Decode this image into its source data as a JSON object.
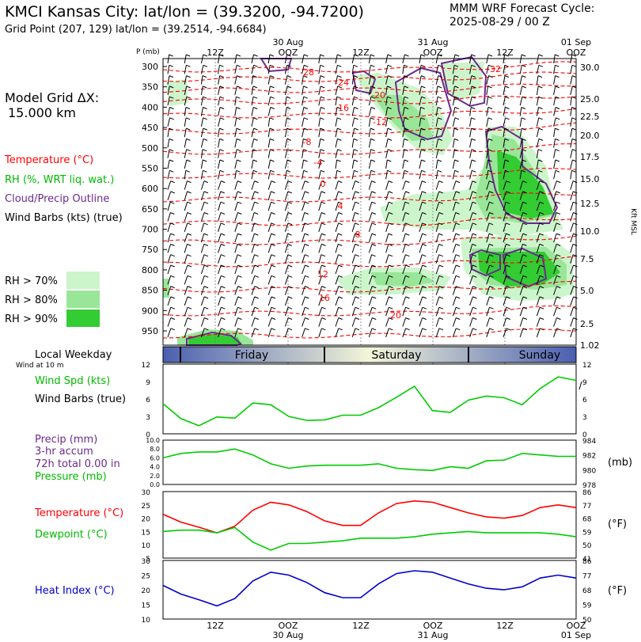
{
  "header": {
    "title": "KMCI Kansas City:  lat/lon = (39.3200, -94.7200)",
    "subtitle": "Grid Point (207, 129) lat/lon = (39.2514, -94.6684)",
    "cycle_line1": "MMM WRF Forecast Cycle:",
    "cycle_line2": "2025-08-29 / 00  Z"
  },
  "legend": {
    "grid1": "Model Grid ΔX:",
    "grid2": "15.000 km",
    "temperature": "Temperature (°C)",
    "rh": "RH (%, WRT liq. wat.)",
    "cloud": "Cloud/Precip Outline",
    "wind": "Wind Barbs (kts) (true)",
    "rh70": "RH > 70%",
    "rh80": "RH > 80%",
    "rh90": "RH > 90%",
    "local_weekday": "Local Weekday",
    "wind10m": "Wind at 10 m",
    "wind_spd": "Wind Spd (kts)",
    "wind_barbs": "Wind Barbs (true)",
    "precip1": "Precip (mm)",
    "precip2": "3-hr accum",
    "precip3": "72h total 0.00 in",
    "pressure": "Pressure (mb)",
    "temp2": "Temperature (°C)",
    "dewpoint": "Dewpoint (°C)",
    "heat_index": "Heat Index (°C)",
    "unit_mb": "(mb)",
    "unit_f1": "(°F)",
    "unit_f2": "(°F)",
    "p_label": "P (mb)",
    "kft_label": "Kft MSL"
  },
  "colors": {
    "temperature": "#ff0000",
    "rh": "#00bb00",
    "cloud": "#6a2a8e",
    "wind": "#000000",
    "heat_index": "#0000cc",
    "rh70": "#ccf5cc",
    "rh80": "#99e699",
    "rh90": "#33cc33"
  },
  "chart_data": {
    "type": "line",
    "time_axis": {
      "top_labels": [
        [
          "12Z",
          ""
        ],
        [
          "OOZ",
          "30 Aug"
        ],
        [
          "12Z",
          ""
        ],
        [
          "OOZ",
          "31 Aug"
        ],
        [
          "12Z",
          ""
        ],
        [
          "OOZ",
          "01 Sep"
        ]
      ],
      "bottom_labels": [
        [
          "12Z",
          ""
        ],
        [
          "OOZ",
          "30 Aug"
        ],
        [
          "12Z",
          ""
        ],
        [
          "OOZ",
          "31 Aug"
        ],
        [
          "12Z",
          ""
        ],
        [
          "OOZ",
          "01 Sep"
        ]
      ]
    },
    "pressure_levels": [
      "300",
      "350",
      "400",
      "450",
      "500",
      "550",
      "600",
      "650",
      "700",
      "750",
      "800",
      "850",
      "900",
      "950"
    ],
    "height_kft": [
      "30.0",
      "25.0",
      "22.5",
      "20.0",
      "17.5",
      "15.0",
      "12.5",
      "10.0",
      "7.5",
      "5.0",
      "2.5",
      "1.02"
    ],
    "temp_contour_labels": [
      "-28",
      "-24",
      "-20",
      "-16",
      "-12",
      "-8",
      "-4",
      "0",
      "4",
      "8",
      "12",
      "16",
      "20",
      "-32"
    ],
    "weekdays": [
      "Friday",
      "Saturday",
      "Sunday"
    ],
    "wind_speed": {
      "ylim": [
        0,
        12
      ],
      "ticks": [
        "0",
        "3",
        "6",
        "9",
        "12"
      ],
      "values": [
        5.2,
        2.6,
        1.4,
        2.9,
        2.7,
        5.3,
        5.0,
        3.0,
        2.3,
        2.4,
        3.2,
        3.2,
        4.5,
        6.3,
        8.2,
        4.0,
        3.7,
        5.8,
        6.5,
        6.2,
        5.0,
        7.8,
        9.8,
        9.2
      ]
    },
    "precip_pressure": {
      "precip_ticks": [
        "0.0",
        "2.0",
        "4.0",
        "6.0",
        "8.0",
        "10.0"
      ],
      "pressure_ticks": [
        "978",
        "980",
        "982",
        "984"
      ],
      "pressure_values": [
        981.6,
        982.2,
        982.4,
        982.4,
        982.8,
        982.0,
        980.8,
        980.2,
        980.5,
        980.6,
        980.6,
        980.6,
        980.8,
        980.2,
        980.0,
        979.9,
        980.4,
        980.2,
        981.2,
        981.3,
        982.2,
        982.0,
        981.8,
        981.8
      ],
      "precip_values": []
    },
    "temp_dew": {
      "c_ticks": [
        "5",
        "10",
        "15",
        "20",
        "25",
        "30"
      ],
      "f_ticks": [
        "41",
        "50",
        "59",
        "68",
        "77",
        "86"
      ],
      "temperature": [
        21.5,
        18.5,
        16.6,
        14.5,
        17.0,
        23.0,
        26.0,
        25.0,
        22.5,
        19.0,
        17.3,
        17.3,
        22.0,
        25.5,
        26.5,
        26.0,
        24.0,
        22.0,
        20.5,
        20.0,
        21.0,
        24.0,
        25.0,
        24.0
      ],
      "dewpoint": [
        15.0,
        15.5,
        15.5,
        14.5,
        16.5,
        11.0,
        8.0,
        10.5,
        10.5,
        11.0,
        11.5,
        12.5,
        12.5,
        12.5,
        13.0,
        14.0,
        14.5,
        15.0,
        14.5,
        14.5,
        14.5,
        14.5,
        14.0,
        13.0
      ]
    },
    "heat_index": {
      "c_ticks": [
        "10",
        "15",
        "20",
        "25",
        "30"
      ],
      "f_ticks": [
        "50",
        "59",
        "68",
        "77",
        "86"
      ],
      "values": [
        21.5,
        18.5,
        16.6,
        14.5,
        17.0,
        23.0,
        26.0,
        25.0,
        22.5,
        19.0,
        17.3,
        17.3,
        22.0,
        25.5,
        26.5,
        26.0,
        24.0,
        22.0,
        20.5,
        20.0,
        21.0,
        24.0,
        25.0,
        24.0
      ]
    }
  }
}
